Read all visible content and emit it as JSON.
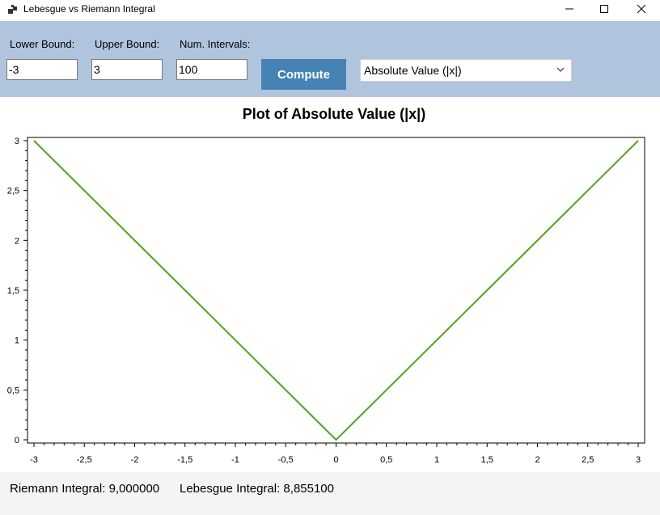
{
  "window": {
    "title": "Lebesgue vs Riemann Integral"
  },
  "toolbar": {
    "lower_label": "Lower Bound:",
    "upper_label": "Upper Bound:",
    "intervals_label": "Num. Intervals:",
    "lower_value": "-3",
    "upper_value": "3",
    "intervals_value": "100",
    "compute_label": "Compute",
    "function_selected": "Absolute Value (|x|)"
  },
  "chart_data": {
    "type": "line",
    "title": "Plot of Absolute Value (|x|)",
    "xlim": [
      -3,
      3
    ],
    "ylim": [
      0,
      3
    ],
    "x_ticks": [
      "-3",
      "-2,5",
      "-2",
      "-1,5",
      "-1",
      "-0,5",
      "0",
      "0,5",
      "1",
      "1,5",
      "2",
      "2,5",
      "3"
    ],
    "y_ticks": [
      "0",
      "0,5",
      "1",
      "1,5",
      "2",
      "2,5",
      "3"
    ],
    "series": [
      {
        "x": [
          -3,
          0,
          3
        ],
        "y": [
          3,
          0,
          3
        ]
      }
    ],
    "line_color": "#5a9e1a"
  },
  "status": {
    "riemann": "Riemann Integral: 9,000000",
    "lebesgue": "Lebesgue Integral: 8,855100"
  }
}
